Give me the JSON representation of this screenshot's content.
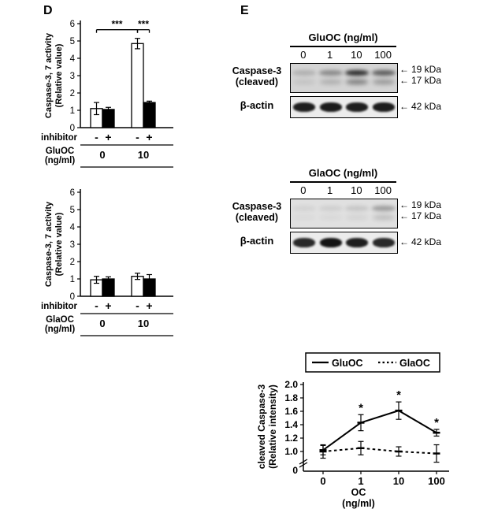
{
  "panels": {
    "d": "D",
    "e": "E"
  },
  "icons": {
    "left_arrow": "←"
  },
  "chart_data": [
    {
      "id": "caspase_activity_gluoc",
      "type": "bar",
      "ylabel": [
        "Caspase-3, 7 activity",
        "(Relative value)"
      ],
      "ylim": [
        0,
        6
      ],
      "yticks": [
        0,
        1,
        2,
        3,
        4,
        5,
        6
      ],
      "row_labels": {
        "inhibitor": "inhibitor",
        "signs": [
          "-",
          "+",
          "-",
          "+"
        ],
        "dose_label": [
          "GluOC",
          "(ng/ml)"
        ],
        "doses": [
          "0",
          "10"
        ]
      },
      "bars": [
        {
          "group": "0",
          "inhibitor": "-",
          "value": 1.1,
          "err": 0.35,
          "fill": "#ffffff"
        },
        {
          "group": "0",
          "inhibitor": "+",
          "value": 1.05,
          "err": 0.12,
          "fill": "#000000"
        },
        {
          "group": "10",
          "inhibitor": "-",
          "value": 4.85,
          "err": 0.3,
          "fill": "#ffffff"
        },
        {
          "group": "10",
          "inhibitor": "+",
          "value": 1.45,
          "err": 0.08,
          "fill": "#000000"
        }
      ],
      "significance": [
        {
          "from": 0,
          "to": 2,
          "label": "***",
          "y": 5.65
        },
        {
          "from": 2,
          "to": 3,
          "label": "***",
          "y": 5.65
        }
      ]
    },
    {
      "id": "caspase_activity_glaoc",
      "type": "bar",
      "ylabel": [
        "Caspase-3, 7 activity",
        "(Relative value)"
      ],
      "ylim": [
        0,
        6
      ],
      "yticks": [
        0,
        1,
        2,
        3,
        4,
        5,
        6
      ],
      "row_labels": {
        "inhibitor": "inhibitor",
        "signs": [
          "-",
          "+",
          "-",
          "+"
        ],
        "dose_label": [
          "GlaOC",
          "(ng/ml)"
        ],
        "doses": [
          "0",
          "10"
        ]
      },
      "bars": [
        {
          "group": "0",
          "inhibitor": "-",
          "value": 0.95,
          "err": 0.2,
          "fill": "#ffffff"
        },
        {
          "group": "0",
          "inhibitor": "+",
          "value": 1.0,
          "err": 0.12,
          "fill": "#000000"
        },
        {
          "group": "10",
          "inhibitor": "-",
          "value": 1.15,
          "err": 0.18,
          "fill": "#ffffff"
        },
        {
          "group": "10",
          "inhibitor": "+",
          "value": 1.0,
          "err": 0.25,
          "fill": "#000000"
        }
      ],
      "significance": []
    },
    {
      "id": "cleaved_caspase_intensity",
      "type": "line",
      "ylabel": [
        "cleaved Caspase-3",
        "(Relative intensity)"
      ],
      "xlabel": [
        "OC",
        "(ng/ml)"
      ],
      "x_categories": [
        "0",
        "1",
        "10",
        "100"
      ],
      "ylim": [
        1.0,
        2.0
      ],
      "yticks": [
        "2.0",
        "1.8",
        "1.6",
        "1.4",
        "1.2",
        "1.0"
      ],
      "zero_label": "0",
      "axis_break": true,
      "legend": [
        {
          "name": "GluOC",
          "line": "solid"
        },
        {
          "name": "GlaOC",
          "line": "dashed"
        }
      ],
      "series": [
        {
          "name": "GluOC",
          "line": "solid",
          "values": [
            1.02,
            1.43,
            1.61,
            1.28
          ],
          "errors": [
            0.07,
            0.12,
            0.13,
            0.05
          ],
          "sig": [
            "",
            "*",
            "*",
            "*"
          ]
        },
        {
          "name": "GlaOC",
          "line": "dashed",
          "values": [
            1.0,
            1.05,
            1.0,
            0.97
          ],
          "errors": [
            0.1,
            0.1,
            0.07,
            0.13
          ],
          "sig": [
            "",
            "",
            "",
            ""
          ]
        }
      ]
    }
  ],
  "blots": [
    {
      "title": "GluOC (ng/ml)",
      "lanes": [
        "0",
        "1",
        "10",
        "100"
      ],
      "rows": [
        {
          "label": [
            "Caspase-3",
            "(cleaved)"
          ],
          "markers": [
            "19 kDa",
            "17 kDa"
          ],
          "band_pattern": "double",
          "intensities": [
            0.18,
            0.38,
            0.88,
            0.62
          ],
          "bg": "#d4d4d4"
        },
        {
          "label": [
            "β-actin"
          ],
          "markers": [
            "42 kDa"
          ],
          "band_pattern": "single",
          "intensities": [
            0.95,
            0.97,
            0.95,
            0.96
          ],
          "bg": "#ececec"
        }
      ]
    },
    {
      "title": "GlaOC (ng/ml)",
      "lanes": [
        "0",
        "1",
        "10",
        "100"
      ],
      "rows": [
        {
          "label": [
            "Caspase-3",
            "(cleaved)"
          ],
          "markers": [
            "19 kDa",
            "17 kDa"
          ],
          "band_pattern": "double",
          "intensities": [
            0.06,
            0.08,
            0.12,
            0.32
          ],
          "bg": "#e0e0e0"
        },
        {
          "label": [
            "β-actin"
          ],
          "markers": [
            "42 kDa"
          ],
          "band_pattern": "single",
          "intensities": [
            0.9,
            1.0,
            0.95,
            0.9
          ],
          "bg": "#ececec"
        }
      ]
    }
  ]
}
